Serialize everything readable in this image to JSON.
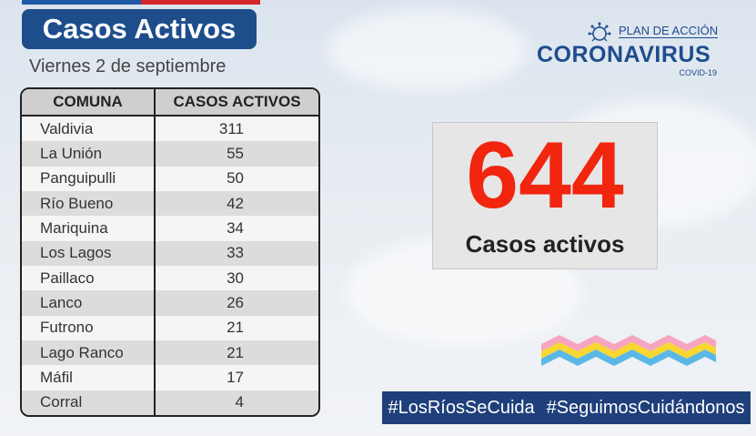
{
  "header": {
    "title": "Casos Activos",
    "date": "Viernes 2 de septiembre"
  },
  "table": {
    "col_comuna": "COMUNA",
    "col_casos": "CASOS ACTIVOS",
    "rows": [
      {
        "comuna": "Valdivia",
        "casos": "311"
      },
      {
        "comuna": "La Unión",
        "casos": "55"
      },
      {
        "comuna": "Panguipulli",
        "casos": "50"
      },
      {
        "comuna": "Río Bueno",
        "casos": "42"
      },
      {
        "comuna": "Mariquina",
        "casos": "34"
      },
      {
        "comuna": "Los Lagos",
        "casos": "33"
      },
      {
        "comuna": "Paillaco",
        "casos": "30"
      },
      {
        "comuna": "Lanco",
        "casos": "26"
      },
      {
        "comuna": "Futrono",
        "casos": "21"
      },
      {
        "comuna": "Lago Ranco",
        "casos": "21"
      },
      {
        "comuna": "Máfil",
        "casos": "17"
      },
      {
        "comuna": "Corral",
        "casos": "4"
      }
    ]
  },
  "logo": {
    "plan": "PLAN DE ACCIÓN",
    "main": "CORONAVIRUS",
    "sub": "COVID-19"
  },
  "summary": {
    "total": "644",
    "label": "Casos activos"
  },
  "hashtags": {
    "first": "#LosRíosSeCuida",
    "second": "#SeguimosCuidándonos"
  },
  "colors": {
    "navy": "#1e4d8c",
    "red": "#f2250f"
  }
}
